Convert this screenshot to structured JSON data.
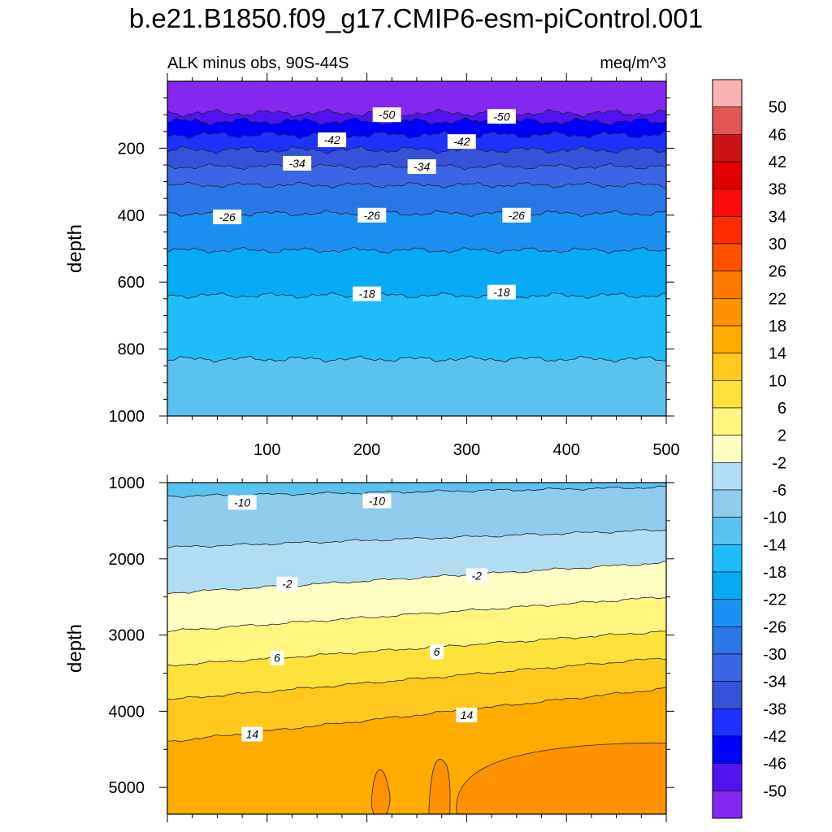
{
  "title": "b.e21.B1850.f09_g17.CMIP6-esm-piControl.001",
  "subtitle_left": "ALK minus obs, 90S-44S",
  "subtitle_right": "meq/m^3",
  "chart_data": [
    {
      "type": "contour",
      "panel": "upper",
      "ylabel": "depth",
      "ylim": [
        1000,
        0
      ],
      "xlim": [
        0,
        500
      ],
      "xticks": [
        "100",
        "200",
        "300",
        "400",
        "500"
      ],
      "yticks": [
        "200",
        "400",
        "600",
        "800",
        "1000"
      ],
      "contour_levels_depth": [
        {
          "level": -50,
          "depth": 95
        },
        {
          "level": -46,
          "depth": 120
        },
        {
          "level": -42,
          "depth": 160
        },
        {
          "level": -38,
          "depth": 205
        },
        {
          "level": -34,
          "depth": 255
        },
        {
          "level": -30,
          "depth": 310
        },
        {
          "level": -26,
          "depth": 395
        },
        {
          "level": -22,
          "depth": 505
        },
        {
          "level": -18,
          "depth": 640
        },
        {
          "level": -14,
          "depth": 830
        }
      ],
      "contour_labels": [
        {
          "text": "-50",
          "x": 220,
          "depth": 100
        },
        {
          "text": "-50",
          "x": 335,
          "depth": 105
        },
        {
          "text": "-42",
          "x": 165,
          "depth": 175
        },
        {
          "text": "-42",
          "x": 295,
          "depth": 180
        },
        {
          "text": "-34",
          "x": 130,
          "depth": 245
        },
        {
          "text": "-34",
          "x": 255,
          "depth": 255
        },
        {
          "text": "-26",
          "x": 60,
          "depth": 405
        },
        {
          "text": "-26",
          "x": 205,
          "depth": 400
        },
        {
          "text": "-26",
          "x": 350,
          "depth": 400
        },
        {
          "text": "-18",
          "x": 200,
          "depth": 635
        },
        {
          "text": "-18",
          "x": 335,
          "depth": 630
        }
      ]
    },
    {
      "type": "contour",
      "panel": "lower",
      "ylabel": "depth",
      "ylim": [
        5350,
        1000
      ],
      "xlim": [
        0,
        500
      ],
      "yticks": [
        "1000",
        "2000",
        "3000",
        "4000",
        "5000"
      ],
      "contour_labels": [
        {
          "text": "-10",
          "x": 75,
          "depth": 1260
        },
        {
          "text": "-10",
          "x": 210,
          "depth": 1240
        },
        {
          "text": "-2",
          "x": 120,
          "depth": 2330
        },
        {
          "text": "-2",
          "x": 310,
          "depth": 2220
        },
        {
          "text": "6",
          "x": 110,
          "depth": 3300
        },
        {
          "text": "6",
          "x": 270,
          "depth": 3220
        },
        {
          "text": "14",
          "x": 85,
          "depth": 4300
        },
        {
          "text": "14",
          "x": 300,
          "depth": 4050
        }
      ]
    }
  ],
  "colorbar": {
    "labels": [
      "50",
      "46",
      "42",
      "38",
      "34",
      "30",
      "26",
      "22",
      "18",
      "14",
      "10",
      "6",
      "2",
      "-2",
      "-6",
      "-10",
      "-14",
      "-18",
      "-22",
      "-26",
      "-30",
      "-34",
      "-38",
      "-42",
      "-46",
      "-50"
    ],
    "colors": [
      "#fbb2b2",
      "#e25656",
      "#cc1414",
      "#e00000",
      "#ff0a0a",
      "#ff2c00",
      "#ff5200",
      "#ff7800",
      "#ff9200",
      "#ffac00",
      "#ffc81e",
      "#ffe13c",
      "#fff57f",
      "#ffffc4",
      "#b2dcf2",
      "#8ecbed",
      "#5ac2f0",
      "#1ebcf8",
      "#08aaf6",
      "#1a90f0",
      "#2a76e6",
      "#3a66e6",
      "#3652d8",
      "#1e32ff",
      "#0000ff",
      "#5014f0",
      "#8228f0"
    ]
  }
}
